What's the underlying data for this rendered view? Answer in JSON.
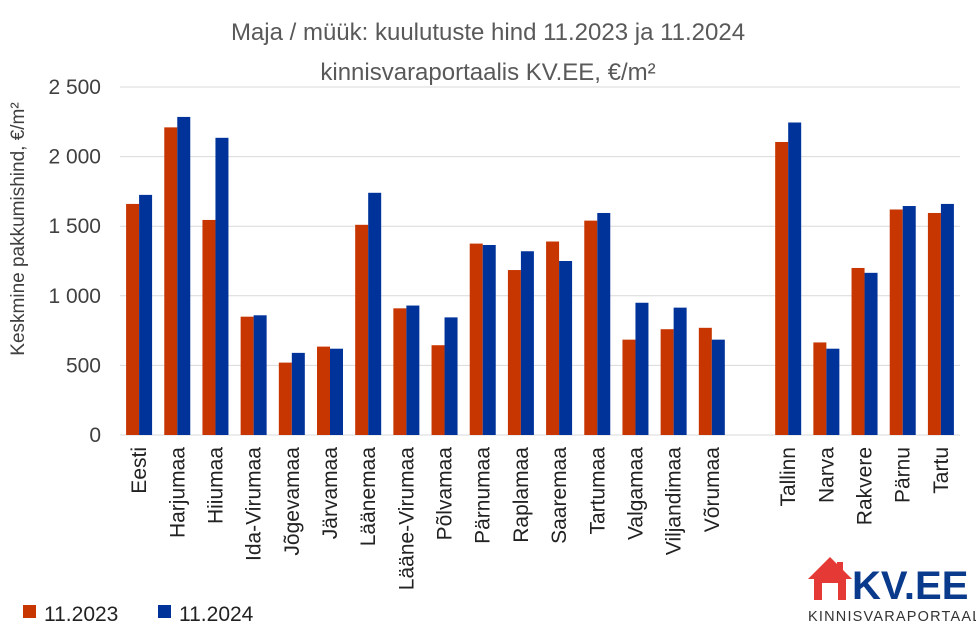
{
  "chart_data": {
    "type": "bar",
    "title": "Maja / müük: kuulutuste hind 11.2023 ja 11.2024",
    "subtitle": "kinnisvaraportaalis KV.EE, €/m²",
    "ylabel": "Keskmine pakkumishind, €/m²",
    "xlabel": "",
    "ylim": [
      0,
      2500
    ],
    "yticks": [
      0,
      500,
      1000,
      1500,
      2000,
      2500
    ],
    "ytick_labels": [
      "0",
      "500",
      "1 000",
      "1 500",
      "2 000",
      "2 500"
    ],
    "grid": true,
    "legend_position": "bottom-left",
    "categories": [
      "Eesti",
      "Harjumaa",
      "Hiiumaa",
      "Ida-Virumaa",
      "Jõgevamaa",
      "Järvamaa",
      "Läänemaa",
      "Lääne-Virumaa",
      "Põlvamaa",
      "Pärnumaa",
      "Raplamaa",
      "Saaremaa",
      "Tartumaa",
      "Valgamaa",
      "Viljandimaa",
      "Võrumaa",
      "",
      "Tallinn",
      "Narva",
      "Rakvere",
      "Pärnu",
      "Tartu"
    ],
    "series": [
      {
        "name": "11.2023",
        "color": "#c73500",
        "values": [
          1660,
          2210,
          1545,
          850,
          520,
          635,
          1510,
          910,
          645,
          1375,
          1185,
          1390,
          1540,
          685,
          760,
          770,
          null,
          2105,
          665,
          1200,
          1620,
          1595
        ]
      },
      {
        "name": "11.2024",
        "color": "#00339a",
        "values": [
          1725,
          2285,
          2135,
          860,
          590,
          620,
          1740,
          930,
          845,
          1365,
          1320,
          1250,
          1595,
          950,
          915,
          685,
          null,
          2245,
          620,
          1165,
          1645,
          1660
        ]
      }
    ]
  },
  "logo": {
    "brand": "KV.EE",
    "tagline": "KINNISVARAPORTAAL",
    "icon": "house-icon"
  }
}
